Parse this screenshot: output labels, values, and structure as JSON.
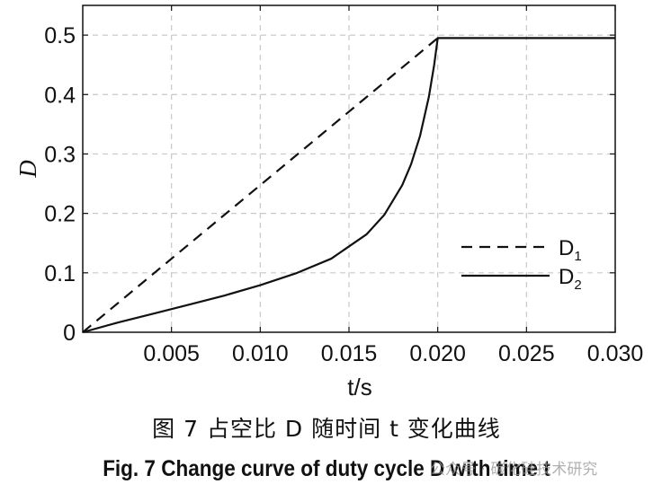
{
  "chart_data": {
    "type": "line",
    "xlabel": "t/s",
    "ylabel": "D",
    "xlim": [
      0,
      0.03
    ],
    "ylim": [
      0,
      0.55
    ],
    "xticks": [
      0.005,
      0.01,
      0.015,
      0.02,
      0.025,
      0.03
    ],
    "xtick_labels": [
      "0.005",
      "0.010",
      "0.015",
      "0.020",
      "0.025",
      "0.030"
    ],
    "yticks": [
      0,
      0.1,
      0.2,
      0.3,
      0.4,
      0.5
    ],
    "ytick_labels": [
      "0",
      "0.1",
      "0.2",
      "0.3",
      "0.4",
      "0.5"
    ],
    "grid": true,
    "legend_position": "lower-right",
    "series": [
      {
        "name": "D1",
        "label_main": "D",
        "label_sub": "1",
        "style": "dashed",
        "x": [
          0,
          0.02
        ],
        "y": [
          0,
          0.495
        ]
      },
      {
        "name": "D2",
        "label_main": "D",
        "label_sub": "2",
        "style": "solid",
        "x": [
          0,
          0.002,
          0.004,
          0.006,
          0.008,
          0.01,
          0.012,
          0.014,
          0.016,
          0.017,
          0.018,
          0.0185,
          0.019,
          0.0195,
          0.0198,
          0.02,
          0.025,
          0.03
        ],
        "y": [
          0,
          0.0165,
          0.0314,
          0.0465,
          0.0619,
          0.0792,
          0.099,
          0.1238,
          0.165,
          0.198,
          0.2475,
          0.2829,
          0.33,
          0.396,
          0.45,
          0.495,
          0.495,
          0.495
        ]
      }
    ]
  },
  "caption": {
    "chinese": "图 7  占空比 D 随时间 t 变化曲线",
    "english": "Fig. 7  Change curve of duty cycle D with time t"
  },
  "watermark": "公众号 · 碳化硅技术研究"
}
